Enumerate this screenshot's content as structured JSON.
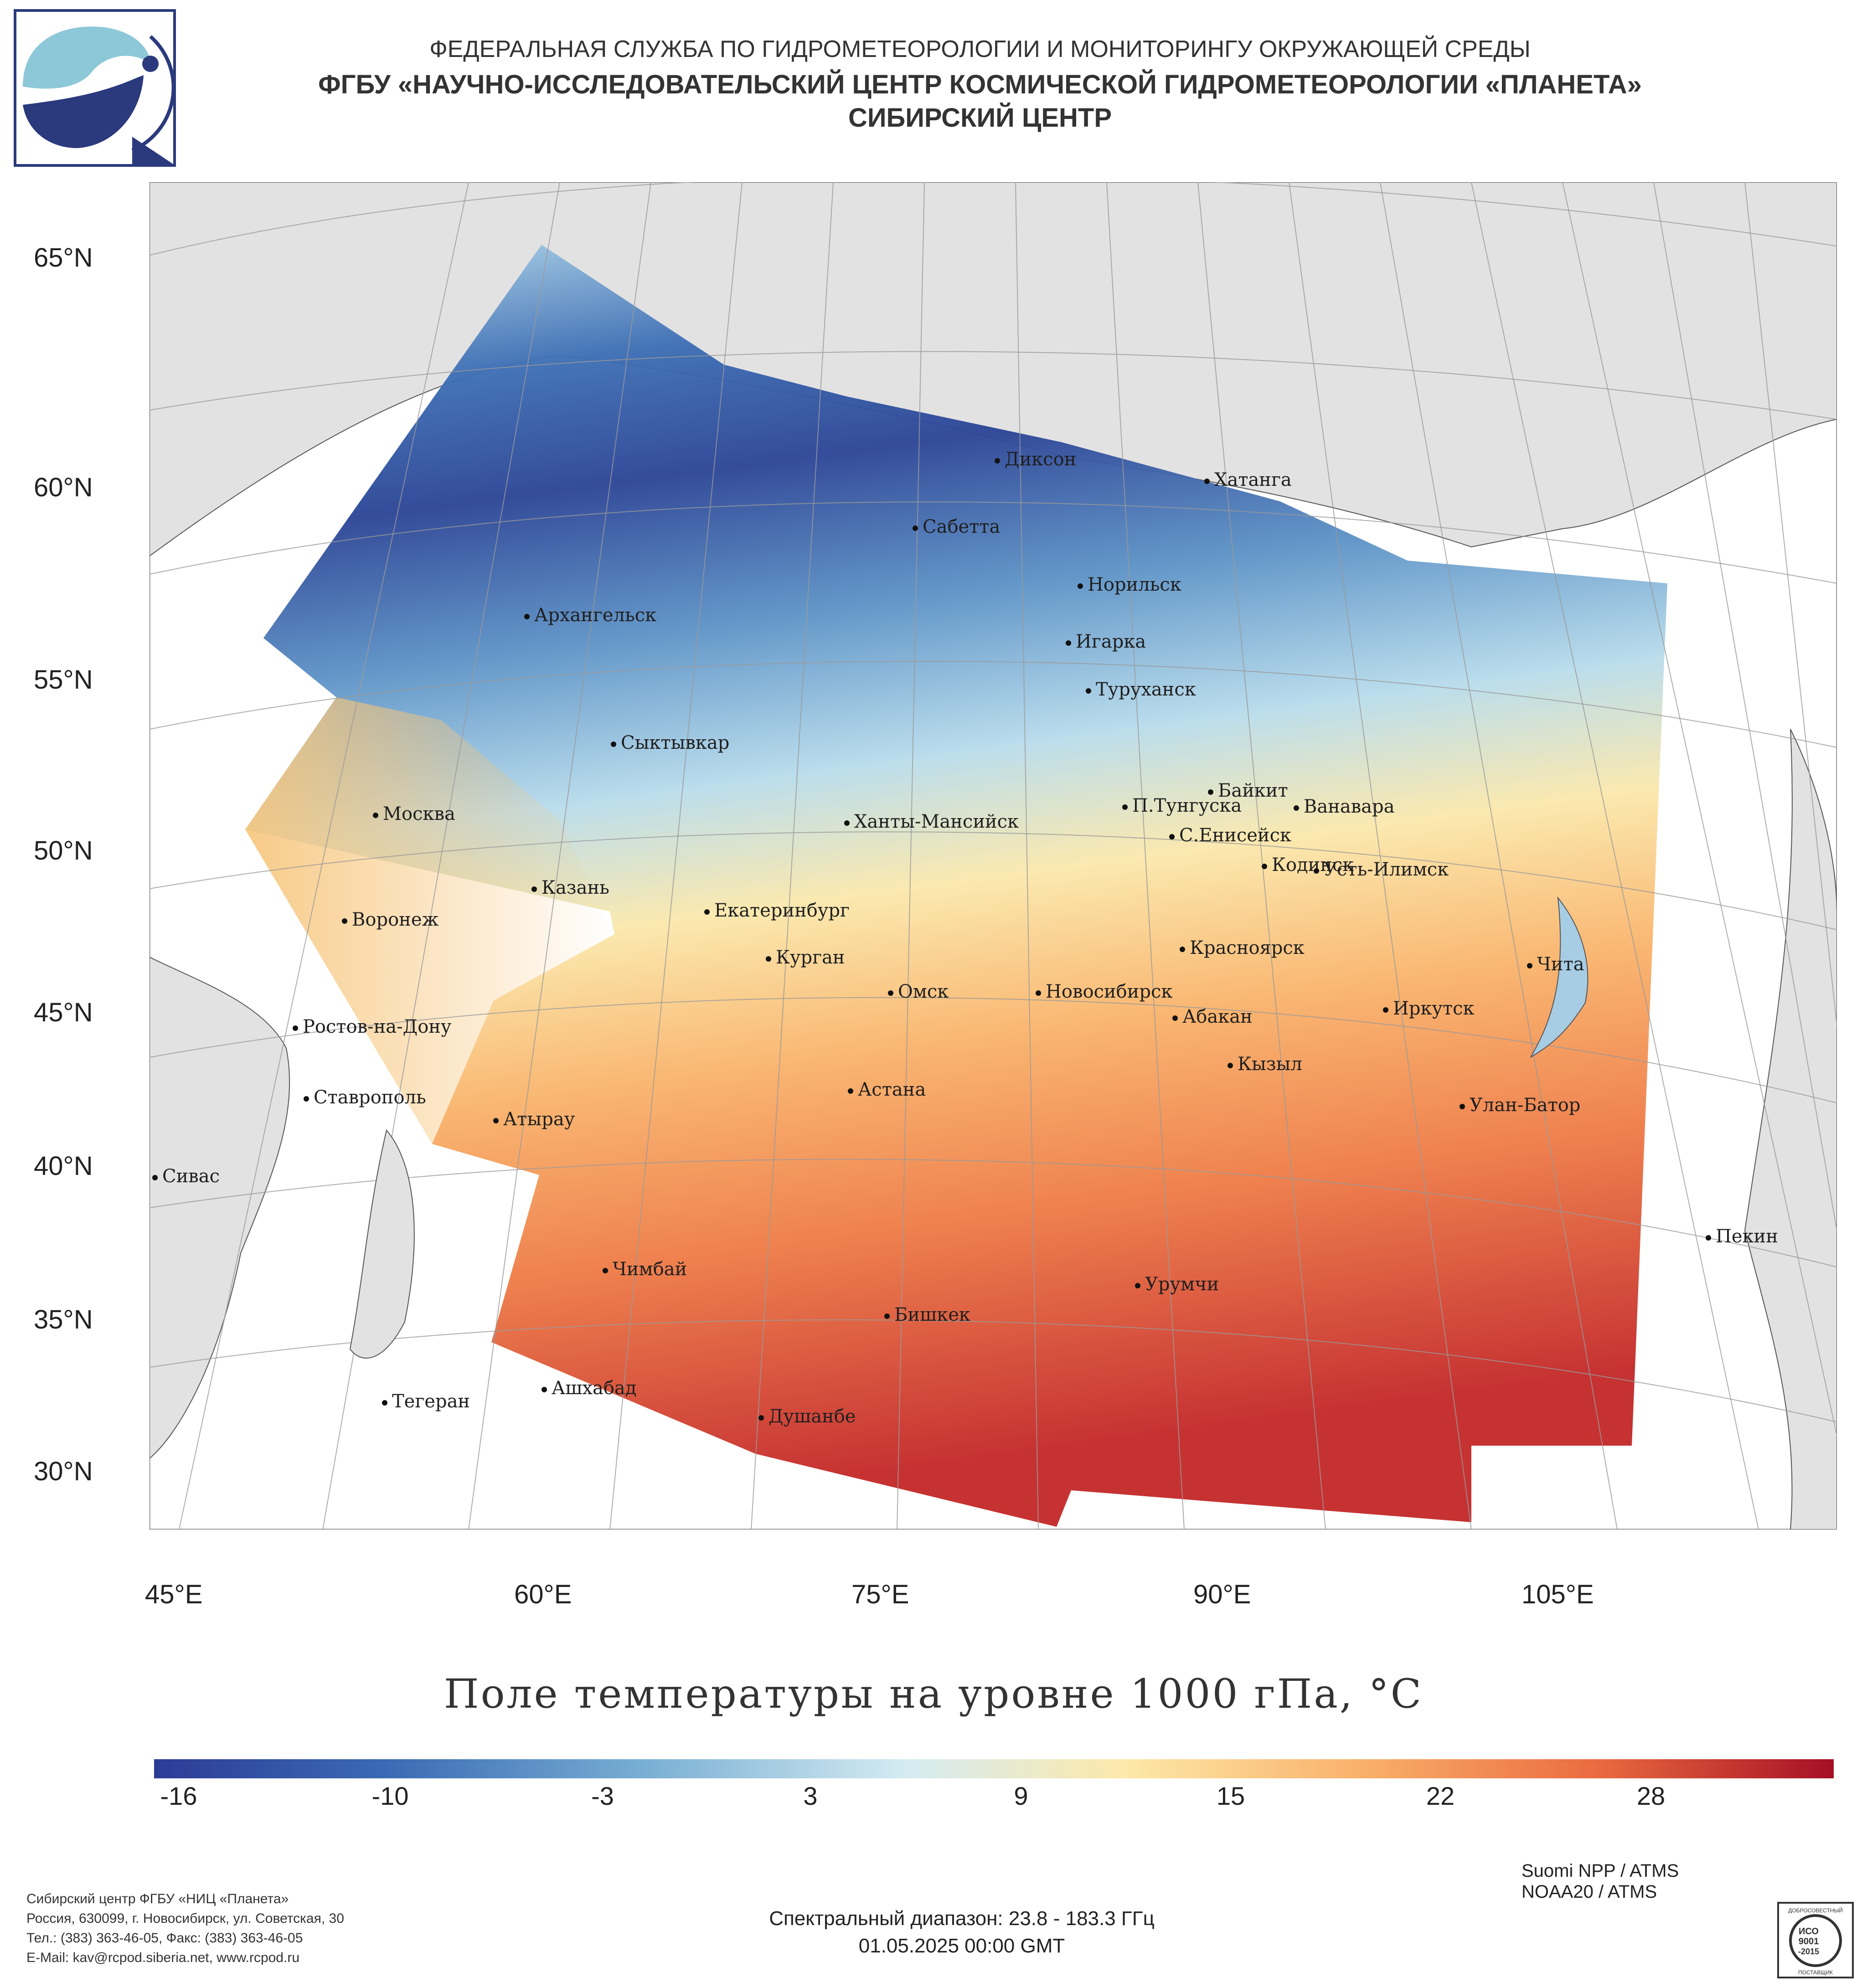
{
  "header": {
    "line1": "ФЕДЕРАЛЬНАЯ СЛУЖБА ПО ГИДРОМЕТЕОРОЛОГИИ И МОНИТОРИНГУ ОКРУЖАЮЩЕЙ СРЕДЫ",
    "line2": "ФГБУ «НАУЧНО-ИССЛЕДОВАТЕЛЬСКИЙ ЦЕНТР КОСМИЧЕСКОЙ ГИДРОМЕТЕОРОЛОГИИ «ПЛАНЕТА»",
    "line3": "СИБИРСКИЙ ЦЕНТР"
  },
  "map": {
    "lat_labels": [
      "65°N",
      "60°N",
      "55°N",
      "50°N",
      "45°N",
      "40°N",
      "35°N",
      "30°N"
    ],
    "lon_labels": [
      "45°E",
      "60°E",
      "75°E",
      "90°E",
      "105°E"
    ],
    "cities": [
      "Диксон",
      "Хатанга",
      "Сабетта",
      "Норильск",
      "Архангельск",
      "Игарка",
      "Туруханск",
      "Сыктывкар",
      "Байкит",
      "П.Тунгуска",
      "Ванавара",
      "Москва",
      "Ханты-Мансийск",
      "С.Енисейск",
      "Кодинск",
      "Усть-Илимск",
      "Казань",
      "Екатеринбург",
      "Воронеж",
      "Красноярск",
      "Курган",
      "Чита",
      "Омск",
      "Новосибирск",
      "Иркутск",
      "Абакан",
      "Ростов-на-Дону",
      "Кызыл",
      "Ставрополь",
      "Астана",
      "Улан-Батор",
      "Атырау",
      "Сивас",
      "Пекин",
      "Чимбай",
      "Урумчи",
      "Бишкек",
      "Ашхабад",
      "Тегеран",
      "Душанбе"
    ]
  },
  "colorbar": {
    "title": "Поле температуры на уровне 1000 гПа, °C",
    "ticks": [
      "-16",
      "-10",
      "-3",
      "3",
      "9",
      "15",
      "22",
      "28"
    ],
    "colors": [
      "#2c3b96",
      "#3b6bb4",
      "#78aed3",
      "#d6ecf2",
      "#fde8a8",
      "#f9b06a",
      "#ea6a3f",
      "#a50f25"
    ]
  },
  "footer": {
    "org_lines": [
      "Сибирский центр ФГБУ «НИЦ «Планета»",
      "Россия, 630099, г. Новосибирск, ул. Советская, 30",
      "Тел.: (383) 363-46-05, Факс: (383) 363-46-05",
      "E-Mail: kav@rcpod.siberia.net, www.rcpod.ru"
    ],
    "spectral": "Спектральный диапазон: 23.8 - 183.3 ГГц",
    "datetime": "01.05.2025 00:00 GMT",
    "satellites": [
      "Suomi NPP / ATMS",
      "NOAA20 / ATMS"
    ],
    "iso_text": [
      "ДОБРОСОВЕСТНЫЙ",
      "ИСО",
      "9001",
      "-2015",
      "ПОСТАВЩИК"
    ]
  }
}
